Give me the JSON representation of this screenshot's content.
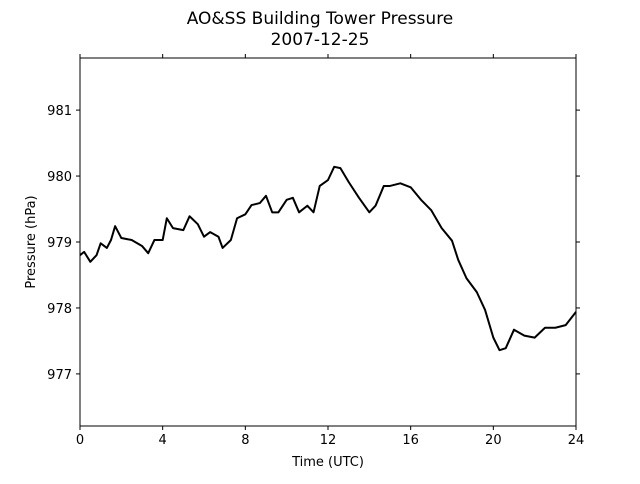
{
  "chart_data": {
    "type": "line",
    "title": "AO&SS Building Tower Pressure",
    "subtitle": "2007-12-25",
    "x_label": "Time (UTC)",
    "y_label": "Pressure (hPa)",
    "x": [
      0,
      0.2,
      0.5,
      0.8,
      1.0,
      1.3,
      1.5,
      1.7,
      2.0,
      2.5,
      3.0,
      3.3,
      3.6,
      4.0,
      4.2,
      4.5,
      5.0,
      5.3,
      5.7,
      6.0,
      6.3,
      6.7,
      6.9,
      7.3,
      7.6,
      8.0,
      8.3,
      8.7,
      9.0,
      9.3,
      9.6,
      10.0,
      10.3,
      10.6,
      11.0,
      11.3,
      11.6,
      12.0,
      12.3,
      12.6,
      13.0,
      13.5,
      14.0,
      14.3,
      14.7,
      15.0,
      15.5,
      16.0,
      16.5,
      17.0,
      17.5,
      18.0,
      18.3,
      18.7,
      19.2,
      19.6,
      20.0,
      20.3,
      20.6,
      21.0,
      21.5,
      22.0,
      22.5,
      23.0,
      23.5,
      24.0
    ],
    "series": [
      {
        "color": "#000000",
        "values": [
          978.8,
          978.85,
          978.7,
          978.8,
          978.98,
          978.91,
          979.03,
          979.24,
          979.06,
          979.03,
          978.94,
          978.83,
          979.03,
          979.03,
          979.36,
          979.21,
          979.18,
          979.39,
          979.27,
          979.08,
          979.15,
          979.08,
          978.91,
          979.03,
          979.36,
          979.42,
          979.56,
          979.59,
          979.7,
          979.45,
          979.45,
          979.64,
          979.67,
          979.45,
          979.55,
          979.45,
          979.85,
          979.94,
          980.14,
          980.12,
          979.91,
          979.67,
          979.45,
          979.55,
          979.85,
          979.85,
          979.89,
          979.83,
          979.64,
          979.48,
          979.21,
          979.02,
          978.73,
          978.45,
          978.24,
          977.97,
          977.55,
          977.36,
          977.39,
          977.67,
          977.58,
          977.55,
          977.7,
          977.7,
          977.74,
          977.94
        ]
      }
    ],
    "xlim": [
      0,
      24
    ],
    "xticks": [
      0,
      4,
      8,
      12,
      16,
      20,
      24
    ],
    "ylim": [
      976.21,
      981.79
    ],
    "yticks": [
      977,
      978,
      979,
      980,
      981
    ]
  }
}
